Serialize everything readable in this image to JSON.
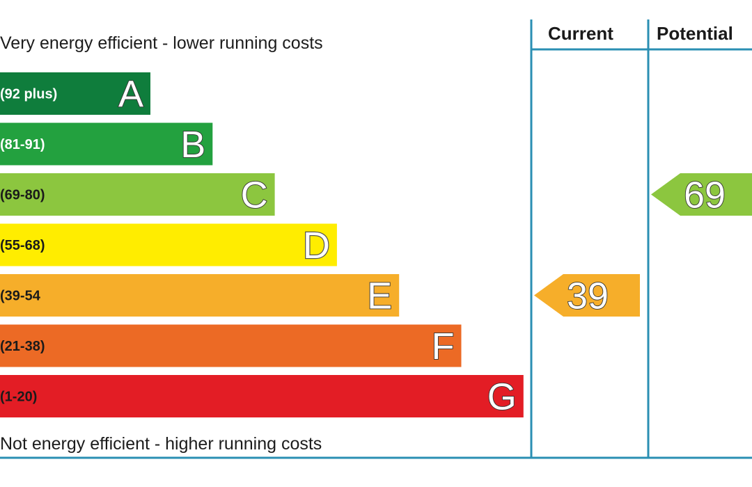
{
  "chart_data": {
    "type": "bar",
    "header_top": "Very energy efficient - lower running costs",
    "header_bottom": "Not energy efficient - higher running costs",
    "columns": [
      "Current",
      "Potential"
    ],
    "bands": [
      {
        "letter": "A",
        "range": "(92 plus)",
        "color": "#0f7d3c"
      },
      {
        "letter": "B",
        "range": "(81-91)",
        "color": "#23a13f"
      },
      {
        "letter": "C",
        "range": "(69-80)",
        "color": "#8cc63f"
      },
      {
        "letter": "D",
        "range": "(55-68)",
        "color": "#ffed00"
      },
      {
        "letter": "E",
        "range": "(39-54",
        "color": "#f6ae2a"
      },
      {
        "letter": "F",
        "range": "(21-38)",
        "color": "#ec6a25"
      },
      {
        "letter": "G",
        "range": "(1-20)",
        "color": "#e31d25"
      }
    ],
    "current": {
      "value": 39,
      "band": "E",
      "color": "#f6ae2a"
    },
    "potential": {
      "value": 69,
      "band": "C",
      "color": "#8cc63f"
    },
    "line_color": "#2a8fb3"
  }
}
